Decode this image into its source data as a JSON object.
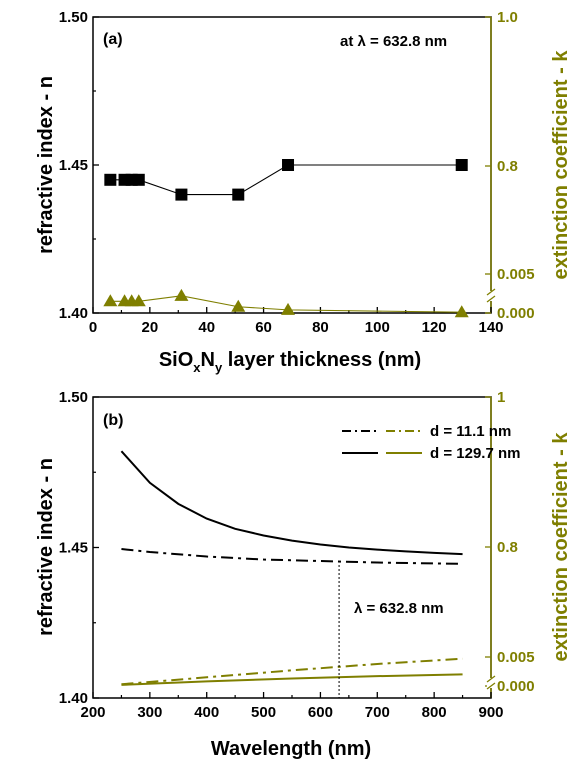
{
  "colors": {
    "left": "#000000",
    "right": "#7f7f00"
  },
  "chart_data": [
    {
      "panel": "(a)",
      "type": "scatter",
      "annotation": "at λ = 632.8 nm",
      "xlabel_parts": [
        "SiO",
        "x",
        "N",
        "y",
        " layer thickness (nm)"
      ],
      "ylabel": "refractive index - n",
      "y2label": "extinction coefficient - k",
      "xlim": [
        0,
        140
      ],
      "xticks": [
        "0",
        "20",
        "40",
        "60",
        "80",
        "100",
        "120",
        "140"
      ],
      "ylim": [
        1.4,
        1.5
      ],
      "yticks": [
        "1.40",
        "1.45",
        "1.50"
      ],
      "y2_broken_axis": true,
      "y2_upper_ticks": [
        "0.8",
        "1.0"
      ],
      "y2_lower_ticks": [
        "0.000",
        "0.005"
      ],
      "series": [
        {
          "axis": "left",
          "marker": "square",
          "x": [
            6.1,
            11.1,
            13.6,
            16.1,
            31.1,
            51.1,
            68.6,
            129.7
          ],
          "y": [
            1.445,
            1.445,
            1.445,
            1.445,
            1.44,
            1.44,
            1.45,
            1.45
          ]
        },
        {
          "axis": "right",
          "marker": "triangle",
          "x": [
            6.1,
            11.1,
            13.6,
            16.1,
            31.1,
            51.1,
            68.6,
            129.7
          ],
          "y": [
            0.0015,
            0.0015,
            0.0015,
            0.0015,
            0.0022,
            0.0008,
            0.0004,
            0.0001
          ]
        }
      ]
    },
    {
      "panel": "(b)",
      "type": "line",
      "annotation": "λ = 632.8 nm",
      "marker_line_x": 632.8,
      "xlabel": "Wavelength (nm)",
      "ylabel": "refractive index - n",
      "y2label": "extinction coefficient - k",
      "xlim": [
        200,
        900
      ],
      "xticks": [
        "200",
        "300",
        "400",
        "500",
        "600",
        "700",
        "800",
        "900"
      ],
      "ylim": [
        1.4,
        1.5
      ],
      "yticks": [
        "1.40",
        "1.45",
        "1.50"
      ],
      "y2_broken_axis": true,
      "y2_upper_ticks": [
        "0.8",
        "1"
      ],
      "y2_lower_ticks": [
        "0.000",
        "0.005"
      ],
      "legend": [
        {
          "label": "d =   11.1 nm",
          "style": "dashdot"
        },
        {
          "label": "d = 129.7 nm",
          "style": "solid"
        }
      ],
      "series": [
        {
          "axis": "left",
          "d": "11.1 nm",
          "style": "dashdot",
          "x": [
            250,
            300,
            400,
            500,
            600,
            700,
            800,
            850
          ],
          "y": [
            1.4495,
            1.4485,
            1.447,
            1.446,
            1.4455,
            1.445,
            1.4447,
            1.4446
          ]
        },
        {
          "axis": "left",
          "d": "129.7 nm",
          "style": "solid",
          "x": [
            250,
            300,
            350,
            400,
            450,
            500,
            550,
            600,
            650,
            700,
            750,
            800,
            850
          ],
          "y": [
            1.482,
            1.4715,
            1.4645,
            1.4596,
            1.4562,
            1.454,
            1.4523,
            1.451,
            1.45,
            1.4493,
            1.4487,
            1.4482,
            1.4478
          ]
        },
        {
          "axis": "right",
          "d": "11.1 nm",
          "style": "dashdot",
          "x": [
            250,
            400,
            550,
            700,
            850
          ],
          "y": [
            0.0003,
            0.0015,
            0.0027,
            0.0038,
            0.0047
          ]
        },
        {
          "axis": "right",
          "d": "129.7 nm",
          "style": "solid",
          "x": [
            250,
            400,
            550,
            700,
            850
          ],
          "y": [
            0.0002,
            0.0008,
            0.0013,
            0.0017,
            0.002
          ]
        }
      ]
    }
  ]
}
